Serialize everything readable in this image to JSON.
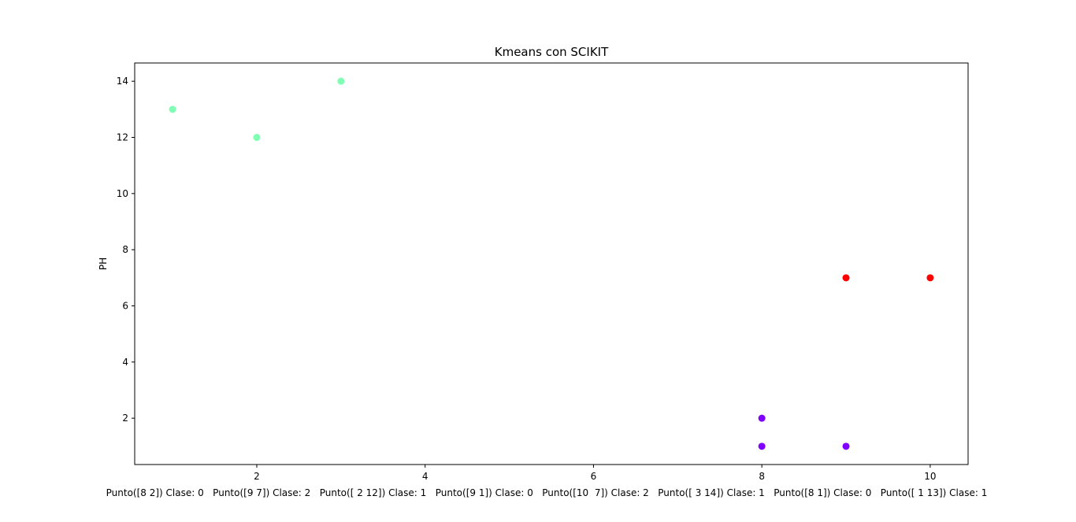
{
  "chart_data": {
    "type": "scatter",
    "title": "Kmeans con SCIKIT",
    "xlabel": "Punto([8 2]) Clase: 0   Punto([9 7]) Clase: 2   Punto([ 2 12]) Clase: 1   Punto([9 1]) Clase: 0   Punto([10  7]) Clase: 2   Punto([ 3 14]) Clase: 1   Punto([8 1]) Clase: 0   Punto([ 1 13]) Clase: 1",
    "ylabel": "PH",
    "xlim": [
      0.55,
      10.45
    ],
    "ylim": [
      0.35,
      14.65
    ],
    "xticks": [
      2,
      4,
      6,
      8,
      10
    ],
    "yticks": [
      2,
      4,
      6,
      8,
      10,
      12,
      14
    ],
    "grid": false,
    "class_colors": {
      "0": "#8000ff",
      "1": "#80ffb4",
      "2": "#ff0000"
    },
    "points": [
      {
        "x": 8,
        "y": 2,
        "class": 0
      },
      {
        "x": 9,
        "y": 7,
        "class": 2
      },
      {
        "x": 2,
        "y": 12,
        "class": 1
      },
      {
        "x": 9,
        "y": 1,
        "class": 0
      },
      {
        "x": 10,
        "y": 7,
        "class": 2
      },
      {
        "x": 3,
        "y": 14,
        "class": 1
      },
      {
        "x": 8,
        "y": 1,
        "class": 0
      },
      {
        "x": 1,
        "y": 13,
        "class": 1
      }
    ]
  }
}
